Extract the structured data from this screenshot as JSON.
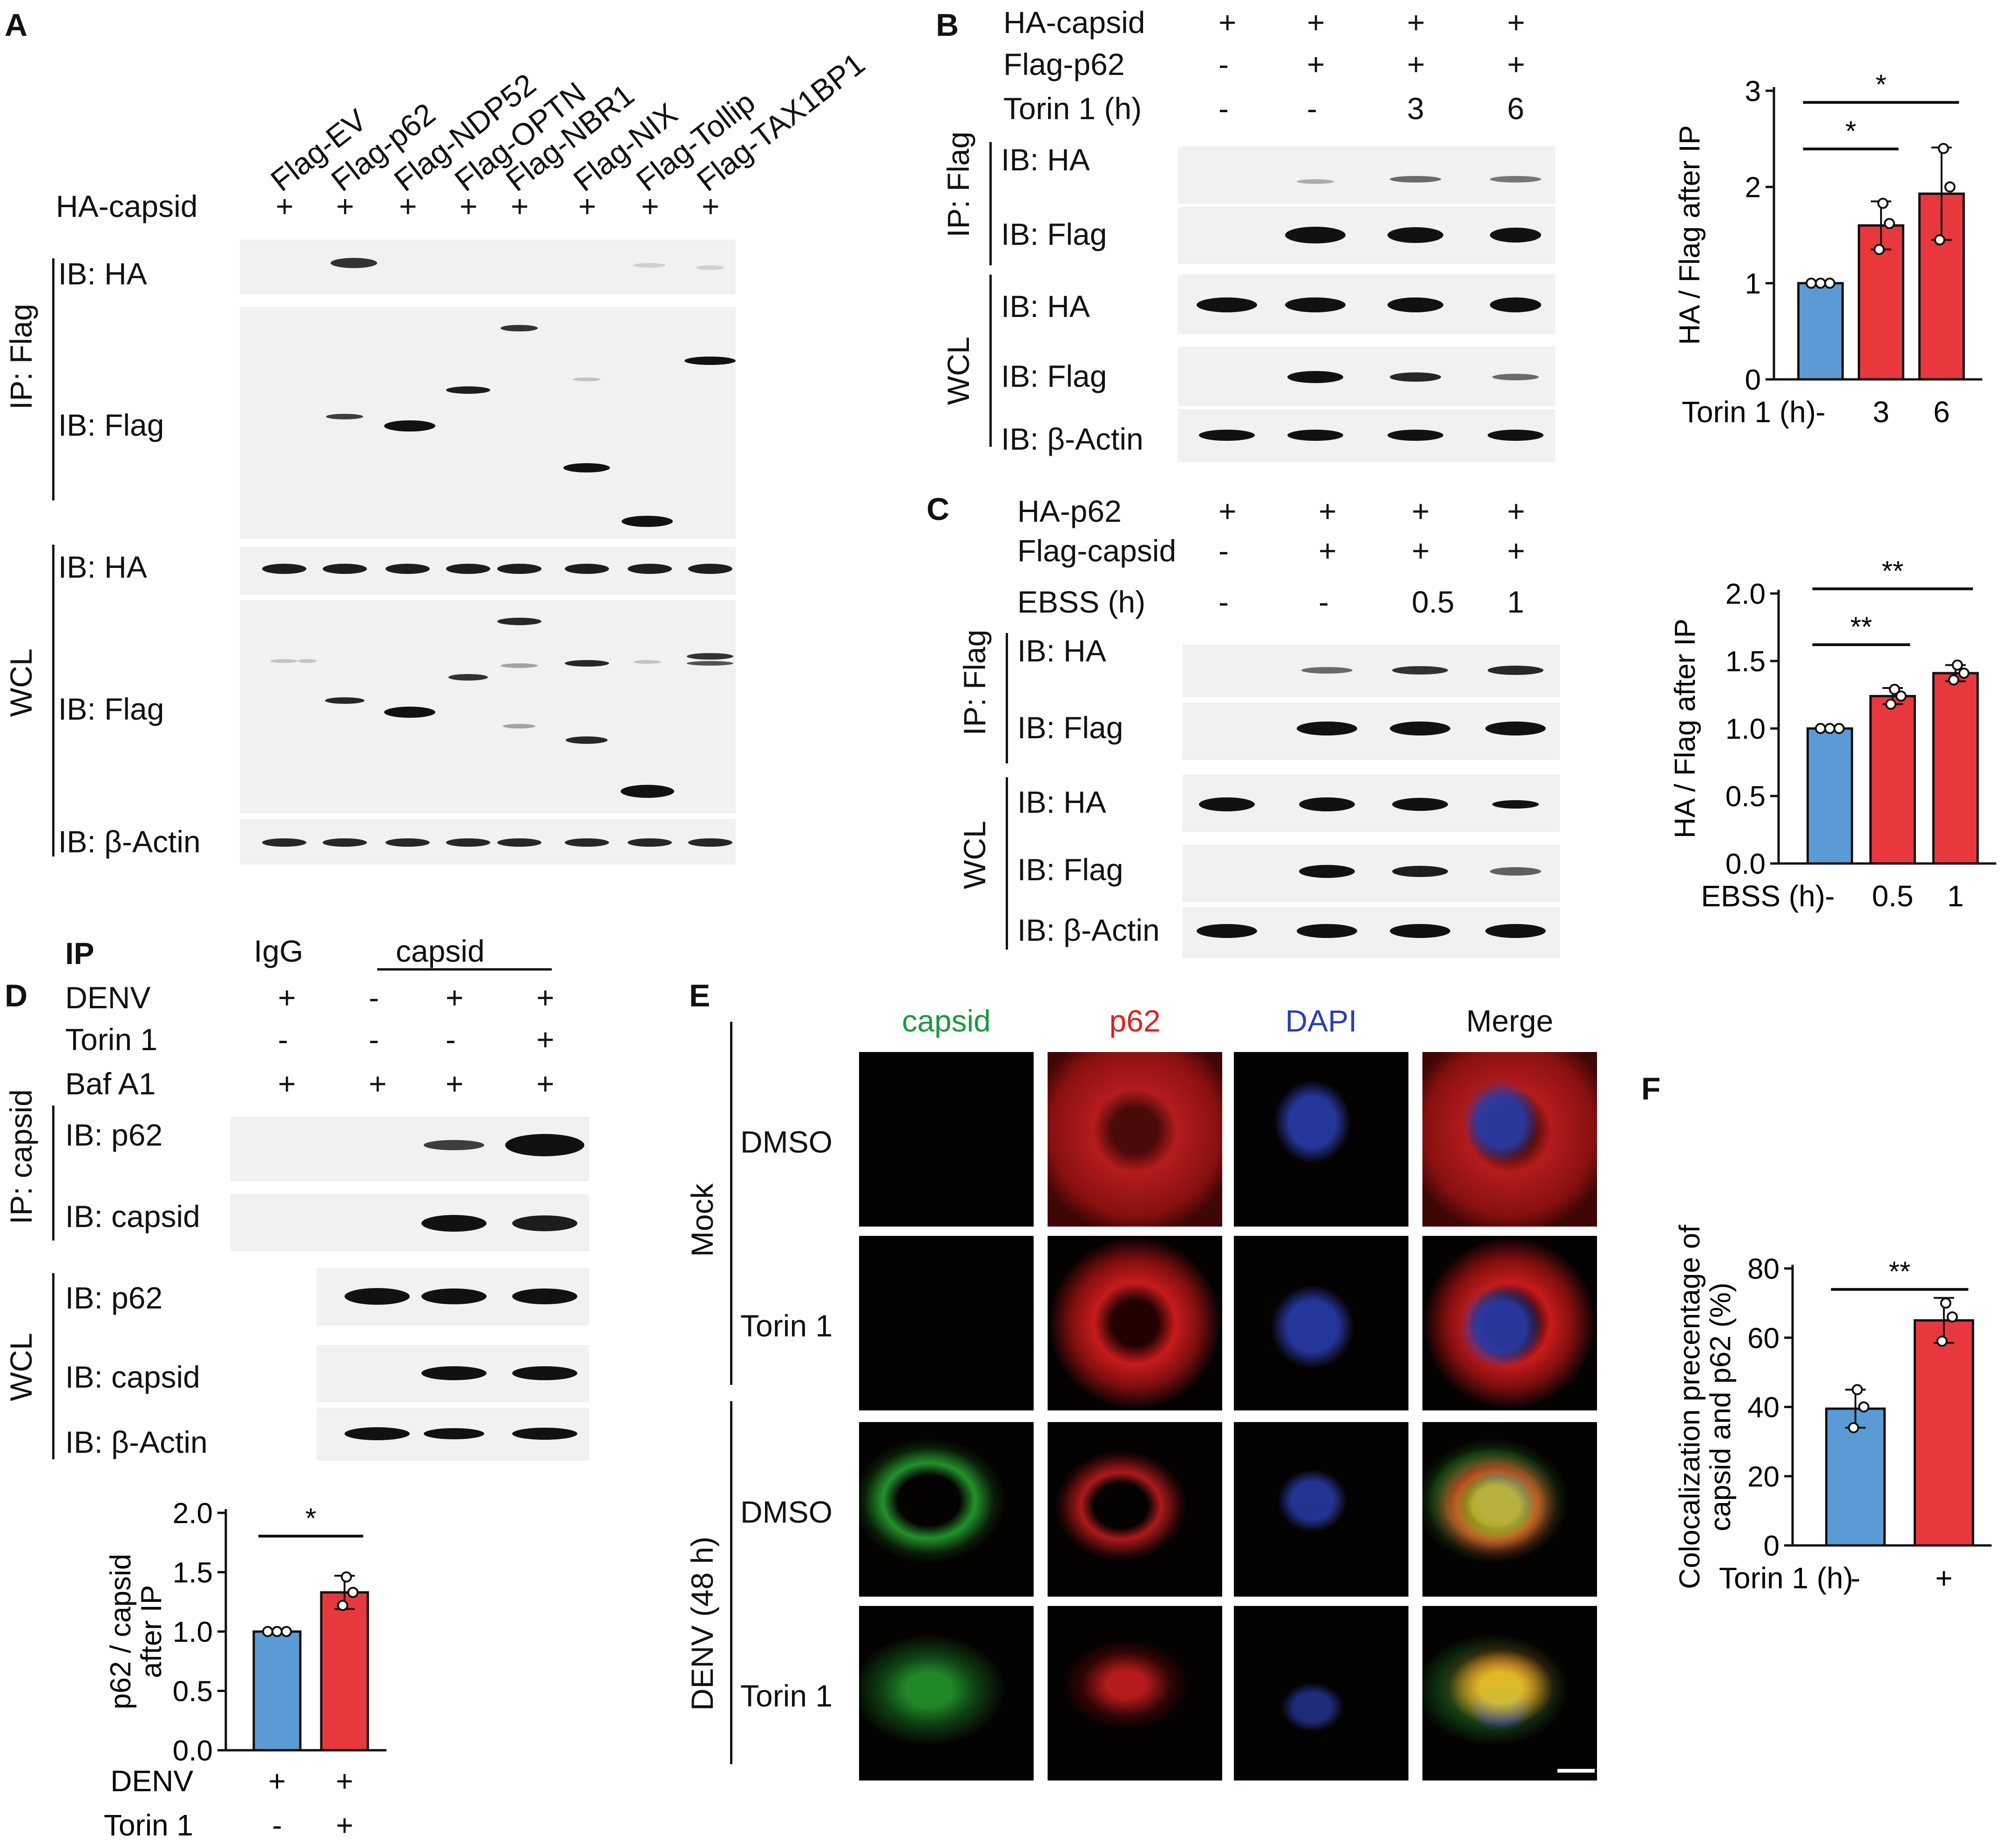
{
  "panels": {
    "A": {
      "letter": "A",
      "lanes": [
        "Flag-EV",
        "Flag-p62",
        "Flag-NDP52",
        "Flag-OPTN",
        "Flag-NBR1",
        "Flag-NIX",
        "Flag-Tollip",
        "Flag-TAX1BP1"
      ],
      "ha_capsid_label": "HA-capsid",
      "ha_capsid_row": [
        "+",
        "+",
        "+",
        "+",
        "+",
        "+",
        "+",
        "+"
      ],
      "ip_label": "IP: Flag",
      "wcl_label": "WCL",
      "ib_ha": "IB: HA",
      "ib_flag": "IB: Flag",
      "ib_actin": "IB: β-Actin"
    },
    "B": {
      "letter": "B",
      "rows": [
        {
          "label": "HA-capsid",
          "values": [
            "+",
            "+",
            "+",
            "+"
          ]
        },
        {
          "label": "Flag-p62",
          "values": [
            "-",
            "+",
            "+",
            "+"
          ]
        },
        {
          "label": "Torin 1 (h)",
          "values": [
            "-",
            "-",
            "3",
            "6"
          ]
        }
      ],
      "ip_label": "IP: Flag",
      "wcl_label": "WCL",
      "ib_ha": "IB: HA",
      "ib_flag": "IB: Flag",
      "ib_actin": "IB: β-Actin"
    },
    "C": {
      "letter": "C",
      "rows": [
        {
          "label": "HA-p62",
          "values": [
            "+",
            "+",
            "+",
            "+"
          ]
        },
        {
          "label": "Flag-capsid",
          "values": [
            "-",
            "+",
            "+",
            "+"
          ]
        },
        {
          "label": "EBSS (h)",
          "values": [
            "-",
            "-",
            "0.5",
            "1"
          ]
        }
      ],
      "ip_label": "IP: Flag",
      "wcl_label": "WCL",
      "ib_ha": "IB: HA",
      "ib_flag": "IB: Flag",
      "ib_actin": "IB: β-Actin"
    },
    "D": {
      "letter": "D",
      "ip_header": "IP",
      "igg": "IgG",
      "capsid_group": "capsid",
      "rows": [
        {
          "label": "DENV",
          "values": [
            "+",
            "-",
            "+",
            "+"
          ]
        },
        {
          "label": "Torin 1",
          "values": [
            "-",
            "-",
            "-",
            "+"
          ]
        },
        {
          "label": "Baf A1",
          "values": [
            "+",
            "+",
            "+",
            "+"
          ]
        }
      ],
      "ip_label": "IP: capsid",
      "wcl_label": "WCL",
      "ib_p62": "IB: p62",
      "ib_capsid": "IB: capsid",
      "ib_actin": "IB: β-Actin"
    },
    "E": {
      "letter": "E",
      "channels": [
        {
          "label": "capsid",
          "color": "#1a9a3a"
        },
        {
          "label": "p62",
          "color": "#e02020"
        },
        {
          "label": "DAPI",
          "color": "#2a3fb0"
        },
        {
          "label": "Merge",
          "color": "#111111"
        }
      ],
      "groups": [
        "Mock",
        "DENV (48 h)"
      ],
      "rows": [
        "DMSO",
        "Torin 1",
        "DMSO",
        "Torin 1"
      ]
    },
    "F": {
      "letter": "F"
    }
  },
  "chart_data": [
    {
      "id": "B",
      "type": "bar",
      "categories": [
        "-",
        "3",
        "6"
      ],
      "values": [
        1.0,
        1.6,
        1.93
      ],
      "errors": [
        0.0,
        0.25,
        0.48
      ],
      "points": [
        [
          1.0,
          1.0,
          1.0
        ],
        [
          1.35,
          1.62,
          1.83
        ],
        [
          1.45,
          2.0,
          2.4
        ]
      ],
      "colors": [
        "#5b9bd5",
        "#e8383d",
        "#e8383d"
      ],
      "xlabel": "Torin 1 (h)",
      "ylabel": "HA / Flag after IP",
      "ylim": [
        0,
        3
      ],
      "yticks": [
        "0",
        "1",
        "2",
        "3"
      ],
      "sig": [
        {
          "from": 0,
          "to": 1,
          "label": "*"
        },
        {
          "from": 0,
          "to": 2,
          "label": "*"
        }
      ]
    },
    {
      "id": "C",
      "type": "bar",
      "categories": [
        "-",
        "0.5",
        "1"
      ],
      "values": [
        1.0,
        1.24,
        1.41
      ],
      "errors": [
        0.0,
        0.06,
        0.06
      ],
      "points": [
        [
          1.0,
          1.0,
          1.0
        ],
        [
          1.18,
          1.24,
          1.29
        ],
        [
          1.36,
          1.41,
          1.47
        ]
      ],
      "colors": [
        "#5b9bd5",
        "#e8383d",
        "#e8383d"
      ],
      "xlabel": "EBSS (h)",
      "ylabel": "HA / Flag after IP",
      "ylim": [
        0,
        2.0
      ],
      "yticks": [
        "0.0",
        "0.5",
        "1.0",
        "1.5",
        "2.0"
      ],
      "sig": [
        {
          "from": 0,
          "to": 1,
          "label": "**"
        },
        {
          "from": 0,
          "to": 2,
          "label": "**"
        }
      ]
    },
    {
      "id": "D",
      "type": "bar",
      "categories": [
        "+ / -",
        "+ / +"
      ],
      "cat_rows": [
        {
          "label": "DENV",
          "values": [
            "+",
            "+"
          ]
        },
        {
          "label": "Torin 1",
          "values": [
            "-",
            "+"
          ]
        }
      ],
      "values": [
        1.0,
        1.33
      ],
      "errors": [
        0.0,
        0.14
      ],
      "points": [
        [
          1.0,
          1.0,
          1.0
        ],
        [
          1.22,
          1.33,
          1.46
        ]
      ],
      "colors": [
        "#5b9bd5",
        "#e8383d"
      ],
      "ylabel": "p62 / capsid after IP",
      "ylim": [
        0,
        2.0
      ],
      "yticks": [
        "0.0",
        "0.5",
        "1.0",
        "1.5",
        "2.0"
      ],
      "sig": [
        {
          "from": 0,
          "to": 1,
          "label": "*"
        }
      ]
    },
    {
      "id": "F",
      "type": "bar",
      "categories": [
        "-",
        "+"
      ],
      "values": [
        39.5,
        65.0
      ],
      "errors": [
        5.5,
        6.5
      ],
      "points": [
        [
          34,
          40,
          45
        ],
        [
          59,
          66,
          70
        ]
      ],
      "colors": [
        "#5b9bd5",
        "#e8383d"
      ],
      "xlabel": "Torin 1 (h)",
      "ylabel": "Colocalization precentage of capsid and p62 (%)",
      "ylim": [
        0,
        80
      ],
      "yticks": [
        "0",
        "20",
        "40",
        "60",
        "80"
      ],
      "sig": [
        {
          "from": 0,
          "to": 1,
          "label": "**"
        }
      ]
    }
  ]
}
